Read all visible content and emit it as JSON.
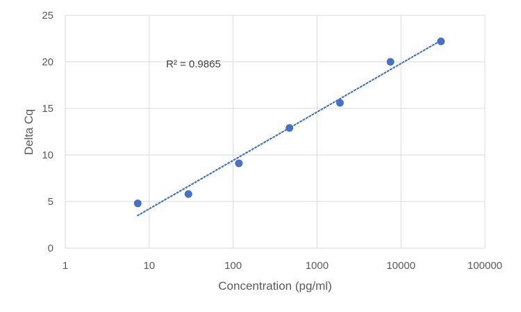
{
  "chart_data": {
    "type": "scatter",
    "title": "",
    "xlabel": "Concentration (pg/ml)",
    "ylabel": "Delta Cq",
    "xscale": "log",
    "xlim": [
      1,
      100000
    ],
    "ylim": [
      0,
      25
    ],
    "xticks": [
      1,
      10,
      100,
      1000,
      10000,
      100000
    ],
    "xtick_labels": [
      "1",
      "10",
      "100",
      "1000",
      "10000",
      "100000"
    ],
    "yticks": [
      0,
      5,
      10,
      15,
      20,
      25
    ],
    "ytick_labels": [
      "0",
      "5",
      "10",
      "15",
      "20",
      "25"
    ],
    "grid": true,
    "series": [
      {
        "name": "Delta Cq",
        "color": "#4472C4",
        "x": [
          7.3,
          29.3,
          117,
          469,
          1875,
          7500,
          30000
        ],
        "y": [
          4.8,
          5.8,
          9.1,
          12.9,
          15.6,
          20.0,
          22.2
        ]
      }
    ],
    "trendline": {
      "type": "logarithmic",
      "style": "dotted",
      "color": "#4472C4",
      "x_range": [
        7.3,
        30000
      ],
      "y_range": [
        3.5,
        22.3
      ]
    },
    "annotations": [
      {
        "text": "R² = 0.9865"
      }
    ]
  }
}
